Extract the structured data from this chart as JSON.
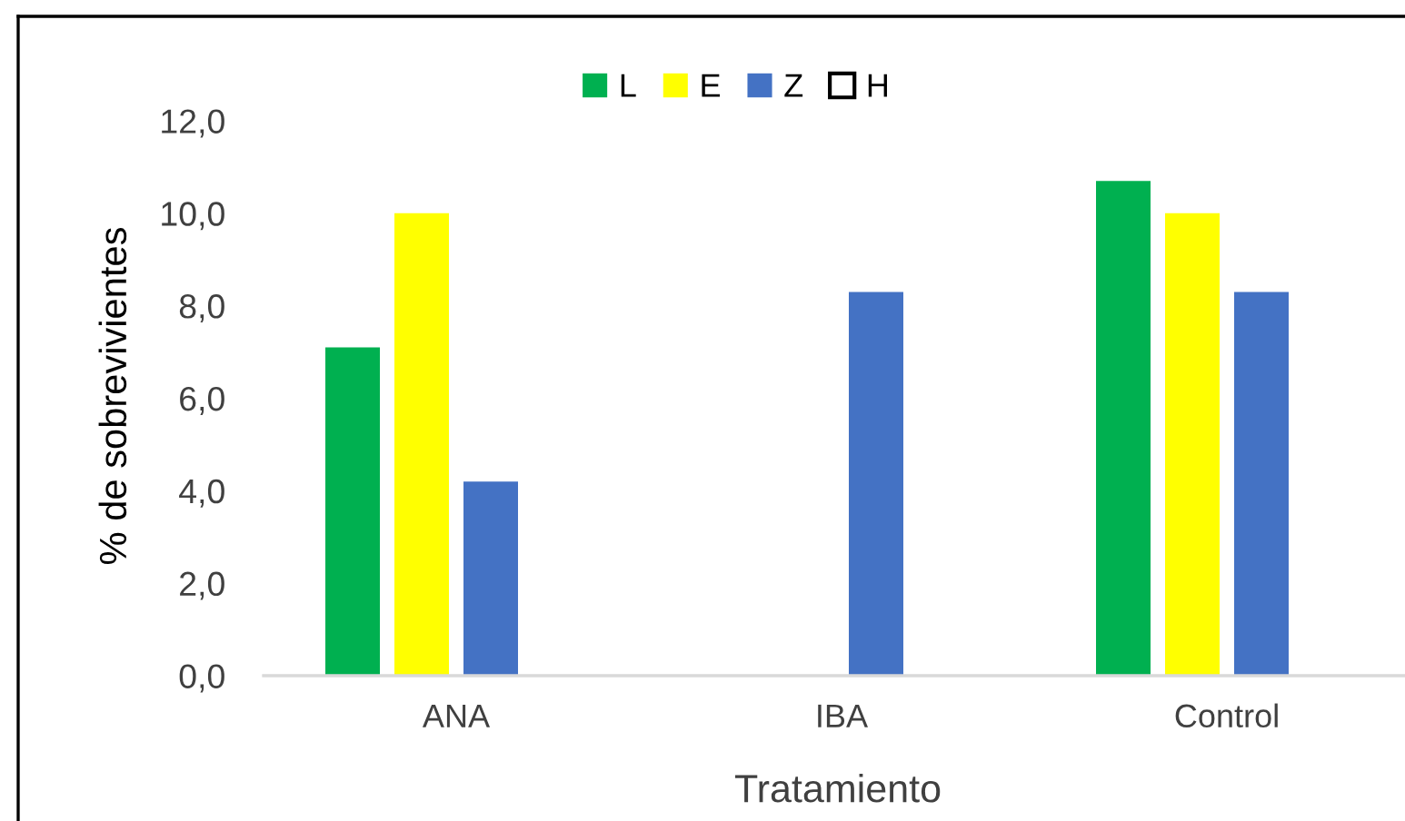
{
  "chart_data": {
    "type": "bar",
    "xlabel": "Tratamiento",
    "ylabel": "% de sobrevivientes",
    "categories": [
      "ANA",
      "IBA",
      "Control"
    ],
    "series": [
      {
        "name": "L",
        "color": "#00b050",
        "values": [
          7.1,
          null,
          10.7
        ]
      },
      {
        "name": "E",
        "color": "#ffff00",
        "values": [
          10.0,
          null,
          10.0
        ]
      },
      {
        "name": "Z",
        "color": "#4472c4",
        "values": [
          4.2,
          8.3,
          8.3
        ]
      },
      {
        "name": "H",
        "color": "#ffffff",
        "values": [
          null,
          null,
          null
        ]
      }
    ],
    "ylim": [
      0,
      12
    ],
    "yticks": [
      {
        "value": 0,
        "label": "0,0"
      },
      {
        "value": 2,
        "label": "2,0"
      },
      {
        "value": 4,
        "label": "4,0"
      },
      {
        "value": 6,
        "label": "6,0"
      },
      {
        "value": 8,
        "label": "8,0"
      },
      {
        "value": 10,
        "label": "10,0"
      },
      {
        "value": 12,
        "label": "12,0"
      }
    ],
    "grid": false,
    "legend": "top"
  }
}
